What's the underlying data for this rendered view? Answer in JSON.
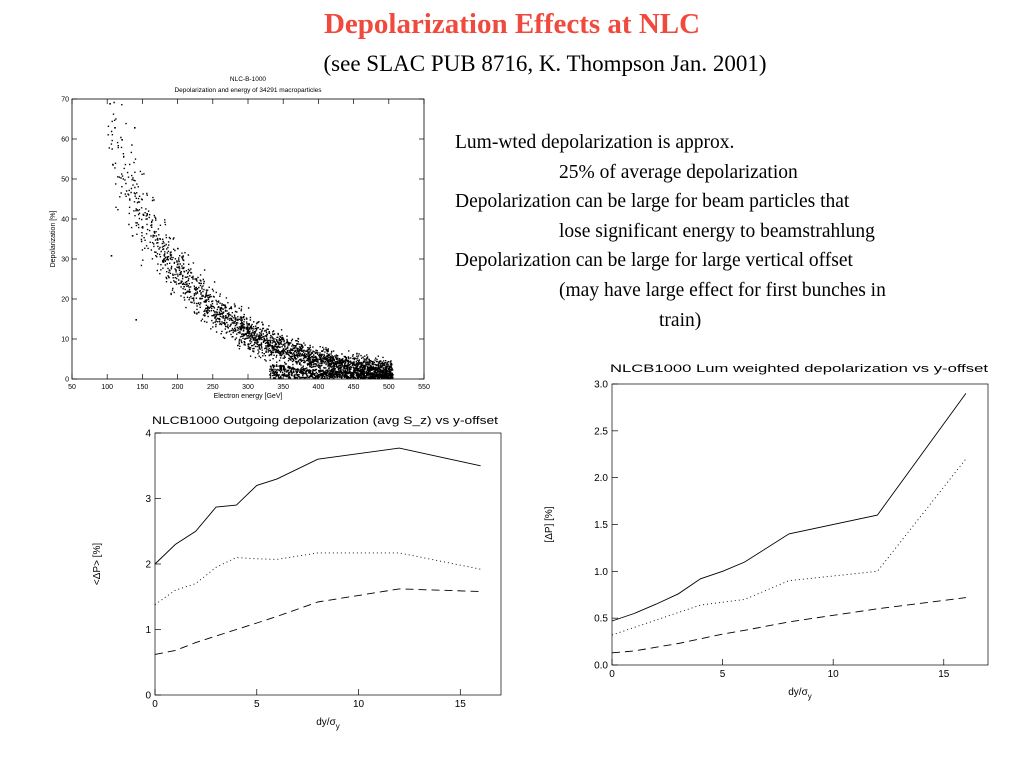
{
  "slide": {
    "title": "Depolarization Effects at NLC",
    "subtitle": "(see SLAC PUB 8716, K. Thompson  Jan. 2001)",
    "bullets": [
      {
        "line1": "Lum-wted depolarization is approx.",
        "line2": "25% of average depolarization"
      },
      {
        "line1": "Depolarization can be large for beam particles that",
        "line2": "lose significant energy to beamstrahlung"
      },
      {
        "line1": "Depolarization can be large for large vertical offset",
        "line2": "(may have large effect for first bunches in",
        "line3": "train)"
      }
    ]
  },
  "chart_data": [
    {
      "type": "scatter",
      "title": "NLC-B-1000",
      "subtitle": "Depolarization and energy of 34291 macroparticles",
      "xlabel": "Electron energy [GeV]",
      "ylabel": "Depolarization [%]",
      "xlim": [
        50,
        550
      ],
      "ylim": [
        0,
        70
      ],
      "xticks": [
        "50",
        "100",
        "150",
        "200",
        "250",
        "300",
        "350",
        "400",
        "450",
        "500",
        "550"
      ],
      "yticks": [
        "0",
        "10",
        "20",
        "30",
        "40",
        "50",
        "60",
        "70"
      ],
      "color": "#000000",
      "points_described": "dense cloud falling from ~60% near 110 GeV to ~0% near 500 GeV"
    },
    {
      "type": "line",
      "title": "NLCB1000 Outgoing depolarization (avg S_z) vs y-offset",
      "xlabel": "dy/σ",
      "xlabel_sub": "y",
      "ylabel": "<ΔP> [%]",
      "xlim": [
        0,
        17
      ],
      "ylim": [
        0,
        4
      ],
      "xticks": [
        "0",
        "5",
        "10",
        "15"
      ],
      "yticks": [
        "0",
        "1",
        "2",
        "3",
        "4"
      ],
      "series": [
        {
          "style": "solid",
          "x": [
            0,
            1,
            2,
            3,
            4,
            5,
            6,
            8,
            12,
            16
          ],
          "values": [
            2.0,
            2.3,
            2.5,
            2.87,
            2.9,
            3.2,
            3.3,
            3.6,
            3.77,
            3.5
          ]
        },
        {
          "style": "dotted",
          "x": [
            0,
            1,
            2,
            3,
            4,
            5,
            6,
            8,
            12,
            16
          ],
          "values": [
            1.38,
            1.6,
            1.7,
            1.95,
            2.1,
            2.08,
            2.07,
            2.17,
            2.17,
            1.92
          ]
        },
        {
          "style": "dashed",
          "x": [
            0,
            1,
            2,
            3,
            4,
            5,
            6,
            8,
            12,
            16
          ],
          "values": [
            0.62,
            0.68,
            0.8,
            0.9,
            1.0,
            1.1,
            1.2,
            1.42,
            1.62,
            1.58
          ]
        }
      ]
    },
    {
      "type": "line",
      "title": "NLCB1000 Lum weighted depolarization vs y-offset",
      "xlabel": "dy/σ",
      "xlabel_sub": "y",
      "ylabel": "[ΔP] [%]",
      "xlim": [
        0,
        17
      ],
      "ylim": [
        0,
        3.0
      ],
      "xticks": [
        "0",
        "5",
        "10",
        "15"
      ],
      "yticks": [
        "0.0",
        "0.5",
        "1.0",
        "1.5",
        "2.0",
        "2.5",
        "3.0"
      ],
      "series": [
        {
          "style": "solid",
          "x": [
            0,
            1,
            2,
            3,
            4,
            5,
            6,
            8,
            12,
            16
          ],
          "values": [
            0.47,
            0.55,
            0.65,
            0.76,
            0.92,
            1.0,
            1.1,
            1.4,
            1.6,
            2.9
          ]
        },
        {
          "style": "dotted",
          "x": [
            0,
            1,
            2,
            3,
            4,
            5,
            6,
            8,
            12,
            16
          ],
          "values": [
            0.32,
            0.4,
            0.48,
            0.56,
            0.64,
            0.67,
            0.7,
            0.9,
            1.0,
            2.2
          ]
        },
        {
          "style": "dashed",
          "x": [
            0,
            1,
            2,
            3,
            4,
            5,
            6,
            8,
            12,
            16
          ],
          "values": [
            0.13,
            0.15,
            0.19,
            0.23,
            0.28,
            0.33,
            0.37,
            0.46,
            0.6,
            0.72
          ]
        }
      ]
    }
  ]
}
